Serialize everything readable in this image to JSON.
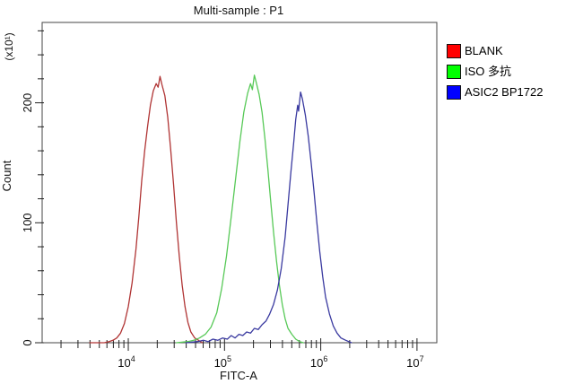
{
  "chart_data": {
    "type": "line",
    "subtype": "flow-cytometry-histogram-overlay",
    "title": "Multi-sample : P1",
    "xlabel": "FITC-A",
    "ylabel": "Count",
    "y_unit_multiplier": "(x10¹)",
    "x_scale": "log",
    "x_range_log": [
      3.105,
      7.206
    ],
    "x_ticks_exponents": [
      4,
      5,
      6,
      7
    ],
    "y_range": [
      0,
      267
    ],
    "y_major_ticks": [
      0,
      100,
      200
    ],
    "y_minor_step": 20,
    "grid": false,
    "legend_position": "right-outside",
    "axis_color": "#444444",
    "series": [
      {
        "name": "BLANK",
        "color": "#b03434",
        "legend_color": "#ff0000",
        "peak_x": 21000,
        "peak_count": 222,
        "points": [
          [
            3.6,
            0
          ],
          [
            3.75,
            0
          ],
          [
            3.8,
            1
          ],
          [
            3.84,
            2
          ],
          [
            3.88,
            4
          ],
          [
            3.92,
            8
          ],
          [
            3.96,
            16
          ],
          [
            4.0,
            30
          ],
          [
            4.04,
            50
          ],
          [
            4.08,
            78
          ],
          [
            4.11,
            105
          ],
          [
            4.14,
            135
          ],
          [
            4.17,
            160
          ],
          [
            4.2,
            180
          ],
          [
            4.23,
            198
          ],
          [
            4.26,
            210
          ],
          [
            4.29,
            216
          ],
          [
            4.31,
            213
          ],
          [
            4.33,
            222
          ],
          [
            4.35,
            215
          ],
          [
            4.38,
            206
          ],
          [
            4.41,
            188
          ],
          [
            4.44,
            162
          ],
          [
            4.47,
            132
          ],
          [
            4.5,
            100
          ],
          [
            4.53,
            72
          ],
          [
            4.56,
            48
          ],
          [
            4.59,
            30
          ],
          [
            4.62,
            17
          ],
          [
            4.65,
            9
          ],
          [
            4.69,
            4
          ],
          [
            4.73,
            2
          ],
          [
            4.77,
            0
          ]
        ]
      },
      {
        "name": "ISO 多抗",
        "color": "#57c957",
        "legend_color": "#00ff00",
        "peak_x": 200000,
        "peak_count": 223,
        "points": [
          [
            4.5,
            0
          ],
          [
            4.62,
            1
          ],
          [
            4.68,
            2
          ],
          [
            4.74,
            4
          ],
          [
            4.8,
            7
          ],
          [
            4.86,
            13
          ],
          [
            4.92,
            25
          ],
          [
            4.97,
            45
          ],
          [
            5.02,
            72
          ],
          [
            5.07,
            105
          ],
          [
            5.12,
            140
          ],
          [
            5.16,
            168
          ],
          [
            5.2,
            192
          ],
          [
            5.24,
            208
          ],
          [
            5.27,
            216
          ],
          [
            5.29,
            211
          ],
          [
            5.31,
            223
          ],
          [
            5.33,
            217
          ],
          [
            5.36,
            207
          ],
          [
            5.39,
            192
          ],
          [
            5.42,
            170
          ],
          [
            5.45,
            145
          ],
          [
            5.48,
            118
          ],
          [
            5.51,
            92
          ],
          [
            5.54,
            68
          ],
          [
            5.57,
            48
          ],
          [
            5.6,
            32
          ],
          [
            5.63,
            20
          ],
          [
            5.66,
            12
          ],
          [
            5.7,
            7
          ],
          [
            5.74,
            3
          ],
          [
            5.78,
            1
          ],
          [
            5.82,
            0
          ]
        ]
      },
      {
        "name": "ASIC2 BP1722",
        "color": "#3a3aa0",
        "legend_color": "#0000ff",
        "peak_x": 620000,
        "peak_count": 209,
        "points": [
          [
            4.6,
            0
          ],
          [
            4.72,
            1
          ],
          [
            4.78,
            2
          ],
          [
            4.83,
            1
          ],
          [
            4.88,
            3
          ],
          [
            4.93,
            2
          ],
          [
            4.98,
            4
          ],
          [
            5.03,
            3
          ],
          [
            5.07,
            6
          ],
          [
            5.11,
            4
          ],
          [
            5.15,
            7
          ],
          [
            5.19,
            6
          ],
          [
            5.23,
            9
          ],
          [
            5.27,
            8
          ],
          [
            5.31,
            12
          ],
          [
            5.35,
            11
          ],
          [
            5.39,
            15
          ],
          [
            5.43,
            18
          ],
          [
            5.47,
            24
          ],
          [
            5.51,
            32
          ],
          [
            5.55,
            44
          ],
          [
            5.59,
            62
          ],
          [
            5.63,
            88
          ],
          [
            5.66,
            115
          ],
          [
            5.69,
            142
          ],
          [
            5.72,
            168
          ],
          [
            5.74,
            186
          ],
          [
            5.76,
            198
          ],
          [
            5.77,
            193
          ],
          [
            5.79,
            209
          ],
          [
            5.81,
            203
          ],
          [
            5.84,
            190
          ],
          [
            5.87,
            172
          ],
          [
            5.9,
            150
          ],
          [
            5.93,
            126
          ],
          [
            5.96,
            100
          ],
          [
            5.99,
            76
          ],
          [
            6.02,
            55
          ],
          [
            6.05,
            38
          ],
          [
            6.09,
            24
          ],
          [
            6.13,
            14
          ],
          [
            6.17,
            8
          ],
          [
            6.21,
            4
          ],
          [
            6.26,
            2
          ],
          [
            6.32,
            0
          ]
        ]
      }
    ]
  }
}
